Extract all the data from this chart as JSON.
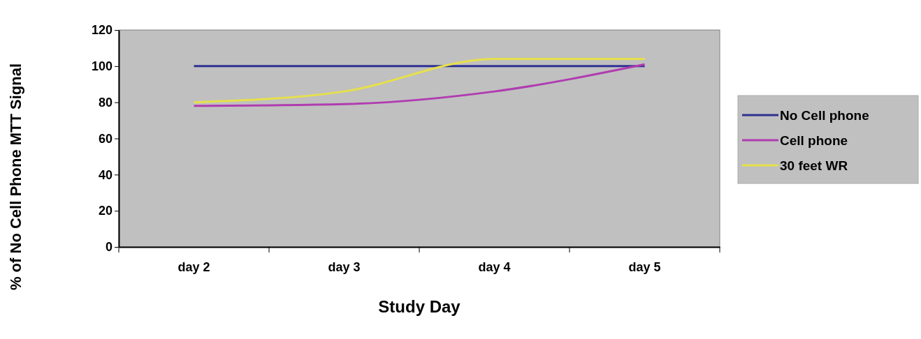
{
  "chart_data": {
    "type": "line",
    "xlabel": "Study Day",
    "ylabel": "% of No Cell Phone MTT Signal",
    "categories": [
      "day 2",
      "day 3",
      "day 4",
      "day 5"
    ],
    "series": [
      {
        "name": "No Cell phone",
        "color": "#2e3192",
        "values": [
          100,
          100,
          100,
          100
        ]
      },
      {
        "name": "Cell phone",
        "color": "#b03cb0",
        "values": [
          78,
          79,
          86,
          101
        ]
      },
      {
        "name": "30 feet WR",
        "color": "#e6e04a",
        "values": [
          80,
          86,
          104,
          104
        ]
      }
    ],
    "ylim": [
      0,
      120
    ],
    "yticks": [
      0,
      20,
      40,
      60,
      80,
      100,
      120
    ],
    "grid": false,
    "legend": "right",
    "marker": "none",
    "line_style": "solid"
  }
}
